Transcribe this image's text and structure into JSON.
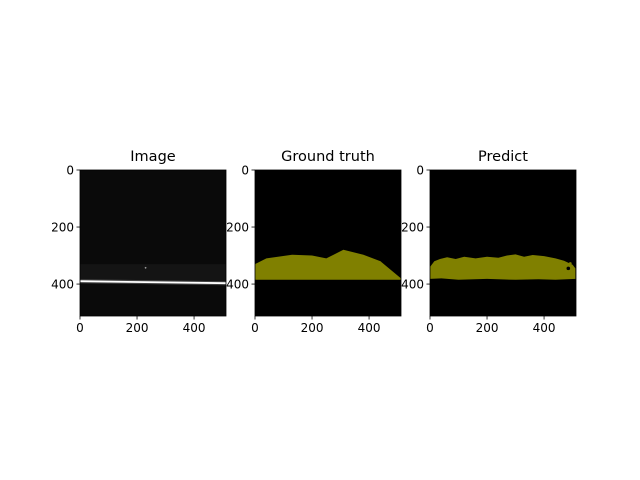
{
  "chart_data": [
    {
      "type": "image",
      "title": "Image",
      "xlim": [
        0,
        512
      ],
      "ylim": [
        512,
        0
      ],
      "xticks": [
        "0",
        "200",
        "400"
      ],
      "yticks": [
        "0",
        "200",
        "400"
      ],
      "background": "#0a0a0a",
      "content": "dark grayscale frame with a bright horizontal streak near y≈395",
      "streak": {
        "x": [
          0,
          512
        ],
        "y": [
          390,
          397
        ]
      }
    },
    {
      "type": "mask",
      "title": "Ground truth",
      "xlim": [
        0,
        512
      ],
      "ylim": [
        512,
        0
      ],
      "xticks": [
        "0",
        "200",
        "400"
      ],
      "yticks": [
        "0",
        "200",
        "400"
      ],
      "background": "#000000",
      "mask_color": "#808000",
      "region": [
        [
          0,
          330
        ],
        [
          40,
          310
        ],
        [
          130,
          297
        ],
        [
          200,
          300
        ],
        [
          250,
          310
        ],
        [
          310,
          280
        ],
        [
          380,
          297
        ],
        [
          440,
          320
        ],
        [
          512,
          380
        ],
        [
          512,
          385
        ],
        [
          0,
          385
        ]
      ]
    },
    {
      "type": "mask",
      "title": "Predict",
      "xlim": [
        0,
        512
      ],
      "ylim": [
        512,
        0
      ],
      "xticks": [
        "0",
        "200",
        "400"
      ],
      "yticks": [
        "0",
        "200",
        "400"
      ],
      "background": "#000000",
      "mask_color": "#808000",
      "region": [
        [
          0,
          340
        ],
        [
          15,
          320
        ],
        [
          35,
          312
        ],
        [
          60,
          306
        ],
        [
          90,
          312
        ],
        [
          120,
          304
        ],
        [
          160,
          310
        ],
        [
          200,
          304
        ],
        [
          240,
          308
        ],
        [
          270,
          300
        ],
        [
          300,
          296
        ],
        [
          330,
          304
        ],
        [
          360,
          298
        ],
        [
          400,
          302
        ],
        [
          440,
          310
        ],
        [
          470,
          318
        ],
        [
          500,
          332
        ],
        [
          510,
          345
        ],
        [
          510,
          382
        ],
        [
          440,
          385
        ],
        [
          380,
          383
        ],
        [
          300,
          385
        ],
        [
          200,
          382
        ],
        [
          100,
          385
        ],
        [
          40,
          380
        ],
        [
          0,
          382
        ]
      ]
    }
  ]
}
